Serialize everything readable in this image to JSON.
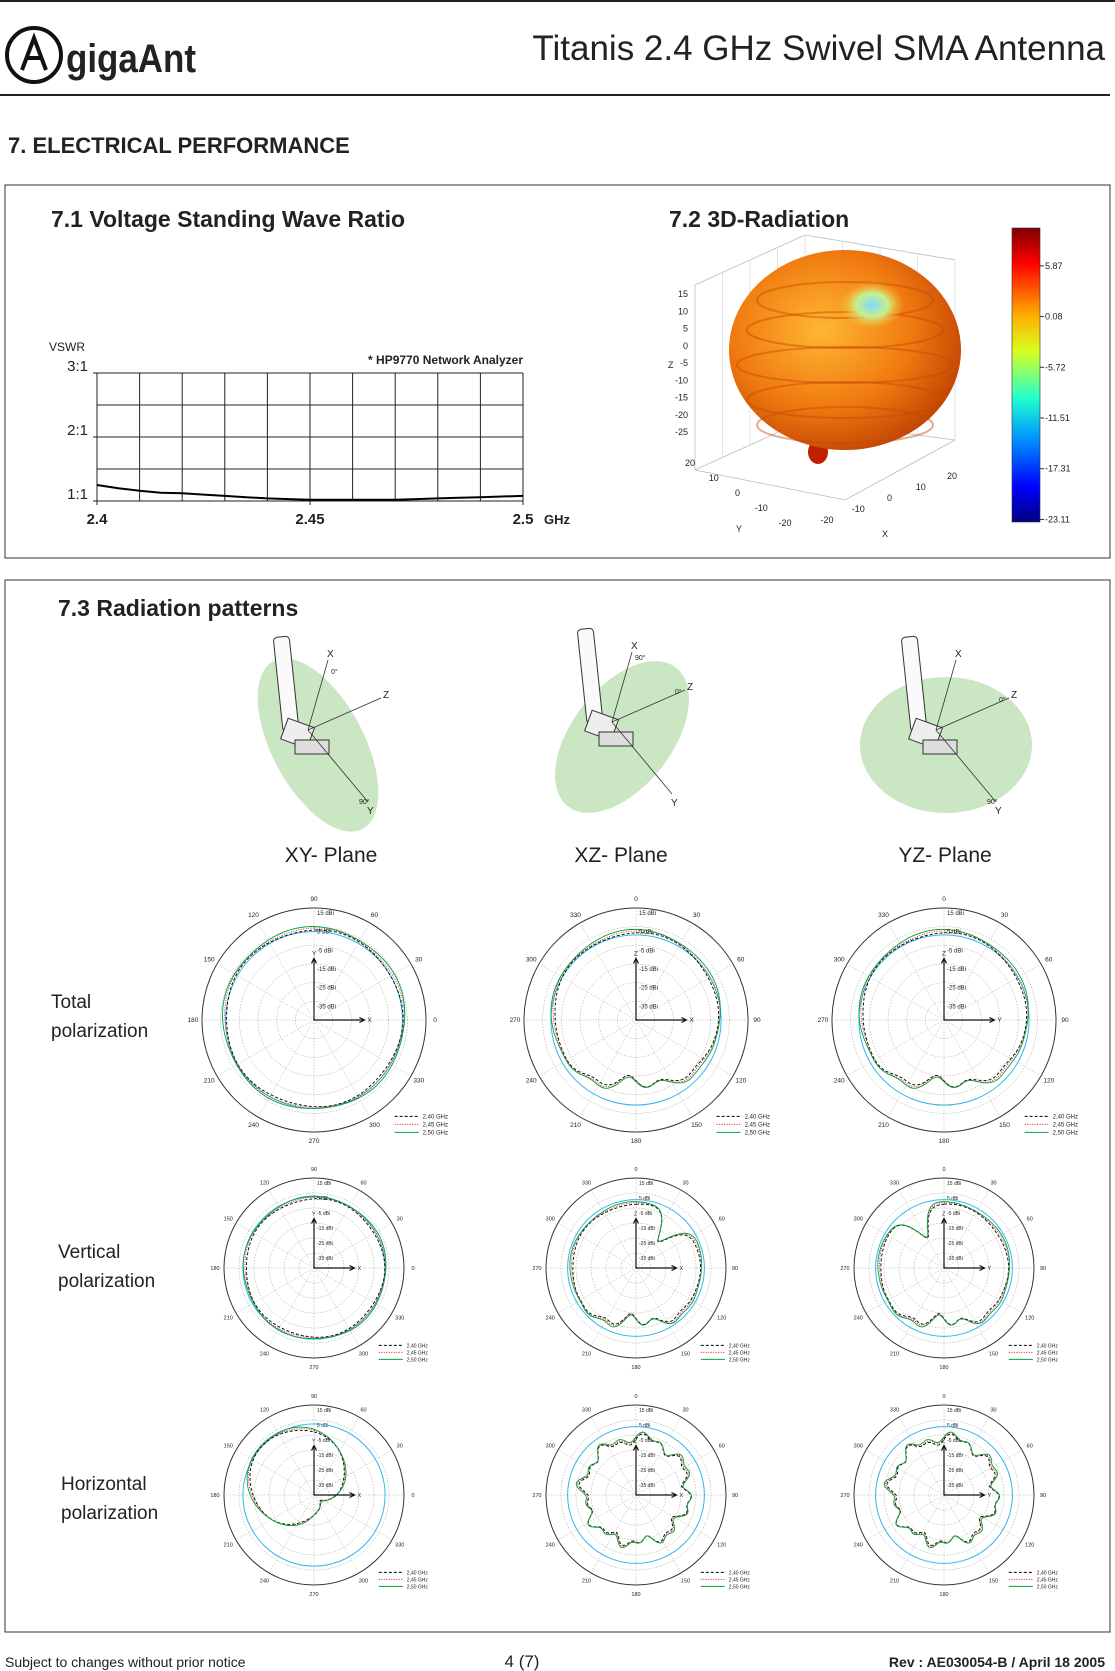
{
  "header": {
    "logo": "gigaAnt",
    "title": "Titanis 2.4 GHz Swivel SMA Antenna"
  },
  "section_title": "7. ELECTRICAL PERFORMANCE",
  "vswr": {
    "type": "line",
    "title": "7.1 Voltage Standing Wave Ratio",
    "ylabel": "VSWR",
    "xunit": "GHz",
    "note": "* HP9770 Network Analyzer",
    "color": "#000000",
    "x": [
      2.4,
      2.405,
      2.41,
      2.415,
      2.42,
      2.425,
      2.43,
      2.435,
      2.44,
      2.445,
      2.45,
      2.455,
      2.46,
      2.465,
      2.47,
      2.475,
      2.48,
      2.485,
      2.49,
      2.495,
      2.5
    ],
    "values": [
      1.25,
      1.2,
      1.16,
      1.13,
      1.12,
      1.1,
      1.08,
      1.06,
      1.04,
      1.03,
      1.02,
      1.02,
      1.02,
      1.02,
      1.02,
      1.03,
      1.04,
      1.05,
      1.06,
      1.07,
      1.08
    ],
    "xlim": [
      2.4,
      2.5
    ],
    "ylim": [
      1,
      3
    ],
    "xticks": [
      2.4,
      2.45,
      2.5
    ],
    "xgrid": [
      2.4,
      2.41,
      2.42,
      2.43,
      2.44,
      2.45,
      2.46,
      2.47,
      2.48,
      2.49,
      2.5
    ],
    "yticks": [
      {
        "value": 3,
        "label": "3:1"
      },
      {
        "value": 2,
        "label": "2:1"
      },
      {
        "value": 1,
        "label": "1:1"
      }
    ],
    "ygrid": [
      1,
      1.5,
      2,
      2.5,
      3
    ]
  },
  "radiation_3d": {
    "title": "7.2 3D-Radiation",
    "zlabel": "Z",
    "ylabel": "Y",
    "xlabel": "X",
    "zticks": [
      15,
      10,
      5,
      0,
      -5,
      -10,
      -15,
      -20,
      -25
    ],
    "yticks": [
      20,
      10,
      0,
      -10,
      -20
    ],
    "xticks": [
      -20,
      -10,
      0,
      10,
      20
    ],
    "colorbar_ticks": [
      5.87,
      0.08,
      -5.72,
      -11.51,
      -17.31,
      -23.11
    ],
    "clim": [
      -23.4,
      10.2
    ]
  },
  "patterns": {
    "title": "7.3 Radiation patterns",
    "planes": [
      {
        "name": "XY- Plane",
        "vertical_axis": "Y",
        "horizontal_axis": "X",
        "angles": [
          90,
          60,
          30,
          0,
          330,
          300,
          270,
          240,
          210,
          180,
          150,
          120
        ]
      },
      {
        "name": "XZ- Plane",
        "vertical_axis": "Z",
        "horizontal_axis": "X",
        "angles": [
          0,
          30,
          60,
          90,
          120,
          150,
          180,
          210,
          240,
          270,
          300,
          330
        ]
      },
      {
        "name": "YZ- Plane",
        "vertical_axis": "Z",
        "horizontal_axis": "Y",
        "angles": [
          0,
          30,
          60,
          90,
          120,
          150,
          180,
          210,
          240,
          270,
          300,
          330
        ]
      }
    ],
    "rows": [
      [
        "Total",
        "polarization"
      ],
      [
        "Vertical",
        "polarization"
      ],
      [
        "Horizontal",
        "polarization"
      ]
    ],
    "rlim": [
      -45,
      15
    ],
    "rticks": [
      {
        "value": 15,
        "label": "15 dBi"
      },
      {
        "value": 5,
        "label": "5 dBi"
      },
      {
        "value": -5,
        "label": "-5 dBi"
      },
      {
        "value": -15,
        "label": "-15 dBi"
      },
      {
        "value": -25,
        "label": "-25 dBi"
      },
      {
        "value": -35,
        "label": "-35 dBi"
      }
    ],
    "legend": [
      {
        "name": "2,40 GHz",
        "color": "#000000"
      },
      {
        "name": "2,45 GHz",
        "color": "#e0141e"
      },
      {
        "name": "2,50 GHz",
        "color": "#00a040"
      }
    ],
    "diagram_labels": {
      "x": "X",
      "y": "Y",
      "z": "Z",
      "zero": "0°",
      "ninety": "90°"
    }
  },
  "footer": {
    "notice": "Subject to changes without prior  notice",
    "page": "4 (7)",
    "revision": "Rev : AE030054-B / April 18 2005"
  }
}
